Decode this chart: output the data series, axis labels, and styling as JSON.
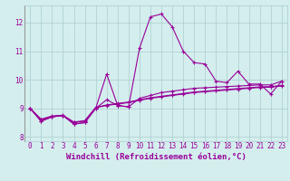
{
  "xlabel": "Windchill (Refroidissement éolien,°C)",
  "x_values": [
    0,
    1,
    2,
    3,
    4,
    5,
    6,
    7,
    8,
    9,
    10,
    11,
    12,
    13,
    14,
    15,
    16,
    17,
    18,
    19,
    20,
    21,
    22,
    23
  ],
  "series": [
    [
      9.0,
      8.55,
      8.7,
      8.75,
      8.45,
      8.5,
      9.0,
      10.2,
      9.1,
      9.05,
      11.1,
      12.2,
      12.3,
      11.85,
      11.0,
      10.6,
      10.55,
      9.95,
      9.9,
      10.3,
      9.85,
      9.85,
      9.5,
      9.95
    ],
    [
      9.0,
      8.55,
      8.7,
      8.75,
      8.45,
      8.5,
      9.0,
      9.3,
      9.1,
      9.05,
      9.35,
      9.45,
      9.55,
      9.6,
      9.65,
      9.7,
      9.72,
      9.74,
      9.76,
      9.78,
      9.8,
      9.82,
      9.82,
      9.95
    ],
    [
      9.0,
      8.6,
      8.72,
      8.75,
      8.5,
      8.55,
      9.02,
      9.1,
      9.15,
      9.2,
      9.28,
      9.35,
      9.4,
      9.45,
      9.5,
      9.55,
      9.58,
      9.61,
      9.64,
      9.67,
      9.7,
      9.73,
      9.74,
      9.78
    ],
    [
      9.0,
      8.62,
      8.73,
      8.76,
      8.52,
      8.57,
      9.03,
      9.12,
      9.17,
      9.22,
      9.3,
      9.37,
      9.42,
      9.47,
      9.52,
      9.57,
      9.6,
      9.63,
      9.66,
      9.69,
      9.72,
      9.75,
      9.76,
      9.8
    ]
  ],
  "line_color": "#990099",
  "bg_color": "#d4eeee",
  "grid_color": "#aacccc",
  "ylim": [
    7.85,
    12.6
  ],
  "xlim": [
    -0.5,
    23.5
  ],
  "yticks": [
    8,
    9,
    10,
    11,
    12
  ],
  "xticks": [
    0,
    1,
    2,
    3,
    4,
    5,
    6,
    7,
    8,
    9,
    10,
    11,
    12,
    13,
    14,
    15,
    16,
    17,
    18,
    19,
    20,
    21,
    22,
    23
  ],
  "marker": "+",
  "markersize": 3,
  "linewidth": 0.8,
  "xlabel_fontsize": 6.5,
  "tick_fontsize": 5.5,
  "fig_bg": "#d4eeee"
}
